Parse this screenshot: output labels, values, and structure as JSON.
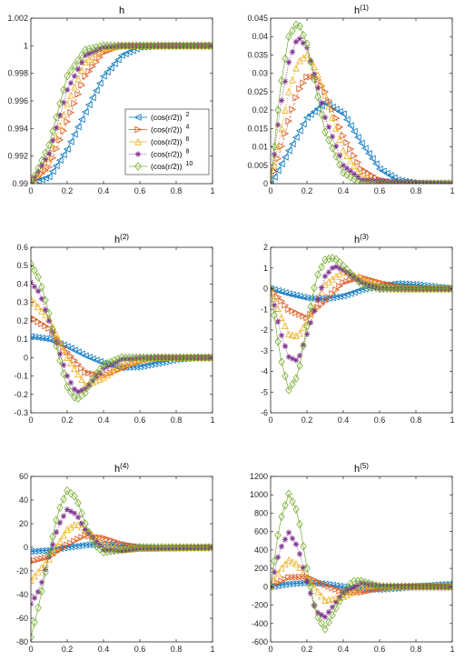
{
  "colors": [
    "#0072BD",
    "#D95319",
    "#EDB120",
    "#7E2F8E",
    "#77AC30"
  ],
  "legend": {
    "entries": [
      "(cos(r/2))",
      "(cos(r/2))",
      "(cos(r/2))",
      "(cos(r/2))",
      "(cos(r/2))"
    ],
    "powers": [
      "2",
      "4",
      "6",
      "8",
      "10"
    ],
    "markers": [
      "triangle-left",
      "triangle-right",
      "triangle-up",
      "asterisk",
      "diamond"
    ],
    "location": "lower-right of first panel"
  },
  "chart_data": [
    {
      "type": "line",
      "title": "h",
      "title_sup": "",
      "xlim": [
        0,
        1
      ],
      "ylim": [
        0.99,
        1.002
      ],
      "xticks": [
        "0",
        "0.2",
        "0.4",
        "0.6",
        "0.8",
        "1"
      ],
      "yticks": [
        "0.99",
        "0.992",
        "0.994",
        "0.996",
        "0.998",
        "1",
        "1.002"
      ],
      "series": [
        {
          "name": "(cos(r/2))^2",
          "x": [
            0,
            0.1,
            0.2,
            0.3,
            0.4,
            0.5,
            0.6,
            0.7,
            0.8,
            0.9,
            1
          ],
          "y": [
            0.99,
            0.9905,
            0.9925,
            0.9952,
            0.9978,
            0.9993,
            0.9999,
            1,
            1,
            1,
            1
          ]
        },
        {
          "name": "(cos(r/2))^4",
          "x": [
            0,
            0.1,
            0.2,
            0.3,
            0.4,
            0.5,
            0.6,
            0.7,
            0.8,
            0.9,
            1
          ],
          "y": [
            0.99,
            0.9912,
            0.9945,
            0.9978,
            0.9995,
            1,
            1,
            1,
            1,
            1,
            1
          ]
        },
        {
          "name": "(cos(r/2))^6",
          "x": [
            0,
            0.1,
            0.2,
            0.3,
            0.4,
            0.5,
            0.6,
            0.7,
            0.8,
            0.9,
            1
          ],
          "y": [
            0.99,
            0.9918,
            0.9958,
            0.9988,
            0.9998,
            1,
            1,
            1,
            1,
            1,
            1
          ]
        },
        {
          "name": "(cos(r/2))^8",
          "x": [
            0,
            0.1,
            0.2,
            0.3,
            0.4,
            0.5,
            0.6,
            0.7,
            0.8,
            0.9,
            1
          ],
          "y": [
            0.99,
            0.9922,
            0.9968,
            0.9993,
            0.9999,
            1,
            1,
            1,
            1,
            1,
            1
          ]
        },
        {
          "name": "(cos(r/2))^10",
          "x": [
            0,
            0.1,
            0.2,
            0.3,
            0.4,
            0.5,
            0.6,
            0.7,
            0.8,
            0.9,
            1
          ],
          "y": [
            0.99,
            0.9928,
            0.9978,
            0.9997,
            1,
            1,
            1,
            1,
            1,
            1,
            1
          ]
        }
      ]
    },
    {
      "type": "line",
      "title": "h",
      "title_sup": "(1)",
      "xlim": [
        0,
        1
      ],
      "ylim": [
        0,
        0.045
      ],
      "xticks": [
        "0",
        "0.2",
        "0.4",
        "0.6",
        "0.8",
        "1"
      ],
      "yticks": [
        "0",
        "0.005",
        "0.01",
        "0.015",
        "0.02",
        "0.025",
        "0.03",
        "0.035",
        "0.04",
        "0.045"
      ],
      "series": [
        {
          "name": "(cos(r/2))^2",
          "x": [
            0,
            0.1,
            0.2,
            0.3,
            0.4,
            0.5,
            0.6,
            0.7,
            0.8,
            0.9,
            1
          ],
          "y": [
            0,
            0.009,
            0.018,
            0.022,
            0.019,
            0.011,
            0.004,
            0.001,
            0,
            0,
            0
          ]
        },
        {
          "name": "(cos(r/2))^4",
          "x": [
            0,
            0.1,
            0.15,
            0.2,
            0.25,
            0.3,
            0.4,
            0.5,
            0.6,
            0.7,
            1
          ],
          "y": [
            0,
            0.017,
            0.025,
            0.029,
            0.029,
            0.025,
            0.013,
            0.004,
            0.001,
            0,
            0
          ]
        },
        {
          "name": "(cos(r/2))^6",
          "x": [
            0,
            0.1,
            0.15,
            0.2,
            0.25,
            0.3,
            0.4,
            0.5,
            0.6,
            1
          ],
          "y": [
            0,
            0.025,
            0.033,
            0.035,
            0.031,
            0.024,
            0.009,
            0.002,
            0,
            0
          ]
        },
        {
          "name": "(cos(r/2))^8",
          "x": [
            0,
            0.05,
            0.1,
            0.15,
            0.2,
            0.25,
            0.3,
            0.4,
            0.5,
            1
          ],
          "y": [
            0,
            0.02,
            0.033,
            0.04,
            0.037,
            0.028,
            0.018,
            0.005,
            0.001,
            0
          ]
        },
        {
          "name": "(cos(r/2))^10",
          "x": [
            0,
            0.05,
            0.1,
            0.15,
            0.2,
            0.25,
            0.3,
            0.4,
            0.5,
            1
          ],
          "y": [
            0,
            0.025,
            0.04,
            0.044,
            0.038,
            0.026,
            0.014,
            0.003,
            0,
            0
          ]
        }
      ]
    },
    {
      "type": "line",
      "title": "h",
      "title_sup": "(2)",
      "xlim": [
        0,
        1
      ],
      "ylim": [
        -0.3,
        0.6
      ],
      "xticks": [
        "0",
        "0.2",
        "0.4",
        "0.6",
        "0.8",
        "1"
      ],
      "yticks": [
        "-0.3",
        "-0.2",
        "-0.1",
        "0",
        "0.1",
        "0.2",
        "0.3",
        "0.4",
        "0.5",
        "0.6"
      ],
      "series": [
        {
          "name": "(cos(r/2))^2",
          "x": [
            0,
            0.1,
            0.2,
            0.3,
            0.4,
            0.5,
            0.6,
            0.7,
            0.8,
            0.9,
            1
          ],
          "y": [
            0.115,
            0.1,
            0.06,
            0.01,
            -0.03,
            -0.055,
            -0.05,
            -0.03,
            -0.01,
            0,
            0
          ]
        },
        {
          "name": "(cos(r/2))^4",
          "x": [
            0,
            0.1,
            0.2,
            0.3,
            0.4,
            0.5,
            0.6,
            0.7,
            0.8,
            1
          ],
          "y": [
            0.22,
            0.16,
            0.03,
            -0.08,
            -0.1,
            -0.06,
            -0.02,
            0,
            0,
            0
          ]
        },
        {
          "name": "(cos(r/2))^6",
          "x": [
            0,
            0.1,
            0.2,
            0.3,
            0.4,
            0.5,
            0.6,
            0.7,
            1
          ],
          "y": [
            0.32,
            0.21,
            0,
            -0.15,
            -0.11,
            -0.04,
            -0.01,
            0,
            0
          ]
        },
        {
          "name": "(cos(r/2))^8",
          "x": [
            0,
            0.05,
            0.1,
            0.15,
            0.2,
            0.25,
            0.3,
            0.4,
            0.5,
            0.6,
            1
          ],
          "y": [
            0.41,
            0.35,
            0.2,
            0.05,
            -0.1,
            -0.19,
            -0.17,
            -0.06,
            -0.01,
            0,
            0
          ]
        },
        {
          "name": "(cos(r/2))^10",
          "x": [
            0,
            0.05,
            0.1,
            0.15,
            0.2,
            0.25,
            0.3,
            0.35,
            0.4,
            0.5,
            0.6,
            1
          ],
          "y": [
            0.51,
            0.42,
            0.24,
            0.02,
            -0.16,
            -0.23,
            -0.19,
            -0.1,
            -0.04,
            0,
            0,
            0
          ]
        }
      ]
    },
    {
      "type": "line",
      "title": "h",
      "title_sup": "(3)",
      "xlim": [
        0,
        1
      ],
      "ylim": [
        -6,
        2
      ],
      "xticks": [
        "0",
        "0.2",
        "0.4",
        "0.6",
        "0.8",
        "1"
      ],
      "yticks": [
        "-6",
        "-5",
        "-4",
        "-3",
        "-2",
        "-1",
        "0",
        "1",
        "2"
      ],
      "series": [
        {
          "name": "(cos(r/2))^2",
          "x": [
            0,
            0.1,
            0.2,
            0.3,
            0.4,
            0.5,
            0.6,
            0.7,
            0.8,
            0.9,
            1
          ],
          "y": [
            0,
            -0.25,
            -0.45,
            -0.5,
            -0.35,
            -0.05,
            0.15,
            0.25,
            0.2,
            0.1,
            0
          ]
        },
        {
          "name": "(cos(r/2))^4",
          "x": [
            0,
            0.1,
            0.2,
            0.3,
            0.4,
            0.5,
            0.6,
            0.7,
            0.8,
            1
          ],
          "y": [
            0,
            -1,
            -1.4,
            -0.6,
            0.3,
            0.55,
            0.3,
            0.1,
            0,
            0
          ]
        },
        {
          "name": "(cos(r/2))^6",
          "x": [
            0,
            0.05,
            0.1,
            0.15,
            0.2,
            0.3,
            0.4,
            0.5,
            0.6,
            0.7,
            1
          ],
          "y": [
            0,
            -1.2,
            -2.2,
            -2.3,
            -1.6,
            0.2,
            0.85,
            0.5,
            0.15,
            0,
            0
          ]
        },
        {
          "name": "(cos(r/2))^8",
          "x": [
            0,
            0.05,
            0.1,
            0.15,
            0.2,
            0.3,
            0.35,
            0.4,
            0.5,
            0.6,
            1
          ],
          "y": [
            0,
            -2,
            -3.3,
            -3.5,
            -2.2,
            0.6,
            1.1,
            0.9,
            0.3,
            0,
            0
          ]
        },
        {
          "name": "(cos(r/2))^10",
          "x": [
            0,
            0.05,
            0.1,
            0.15,
            0.2,
            0.25,
            0.3,
            0.35,
            0.4,
            0.5,
            0.6,
            1
          ],
          "y": [
            0,
            -3.2,
            -4.9,
            -4.2,
            -1.8,
            0.5,
            1.4,
            1.5,
            1.1,
            0.2,
            0,
            0
          ]
        }
      ]
    },
    {
      "type": "line",
      "title": "h",
      "title_sup": "(4)",
      "xlim": [
        0,
        1
      ],
      "ylim": [
        -80,
        60
      ],
      "xticks": [
        "0",
        "0.2",
        "0.4",
        "0.6",
        "0.8",
        "1"
      ],
      "yticks": [
        "-80",
        "-60",
        "-40",
        "-20",
        "0",
        "20",
        "40",
        "60"
      ],
      "series": [
        {
          "name": "(cos(r/2))^2",
          "x": [
            0,
            0.1,
            0.2,
            0.3,
            0.4,
            0.5,
            0.6,
            0.7,
            0.8,
            1
          ],
          "y": [
            -3.5,
            -2.5,
            0,
            2,
            2.5,
            1.5,
            0,
            -0.5,
            -0.5,
            0
          ]
        },
        {
          "name": "(cos(r/2))^4",
          "x": [
            0,
            0.1,
            0.2,
            0.3,
            0.4,
            0.5,
            0.6,
            0.7,
            0.8,
            1
          ],
          "y": [
            -12,
            -8,
            2,
            10,
            8,
            3,
            0,
            -1,
            -0.5,
            0
          ]
        },
        {
          "name": "(cos(r/2))^6",
          "x": [
            0,
            0.1,
            0.2,
            0.25,
            0.3,
            0.4,
            0.5,
            0.6,
            1
          ],
          "y": [
            -28,
            -10,
            15,
            20,
            15,
            2,
            -2,
            -1,
            0
          ]
        },
        {
          "name": "(cos(r/2))^8",
          "x": [
            0,
            0.05,
            0.1,
            0.15,
            0.2,
            0.25,
            0.3,
            0.4,
            0.5,
            0.6,
            1
          ],
          "y": [
            -48,
            -35,
            -8,
            18,
            32,
            28,
            15,
            -2,
            -3,
            -1,
            0
          ]
        },
        {
          "name": "(cos(r/2))^10",
          "x": [
            0,
            0.05,
            0.1,
            0.15,
            0.2,
            0.25,
            0.3,
            0.35,
            0.4,
            0.5,
            0.6,
            1
          ],
          "y": [
            -76,
            -45,
            -5,
            30,
            48,
            42,
            20,
            2,
            -4,
            -2,
            0,
            0
          ]
        }
      ]
    },
    {
      "type": "line",
      "title": "h",
      "title_sup": "(5)",
      "xlim": [
        0,
        1
      ],
      "ylim": [
        -600,
        1200
      ],
      "xticks": [
        "0",
        "0.2",
        "0.4",
        "0.6",
        "0.8",
        "1"
      ],
      "yticks": [
        "-600",
        "-400",
        "-200",
        "0",
        "200",
        "400",
        "600",
        "800",
        "1000",
        "1200"
      ],
      "series": [
        {
          "name": "(cos(r/2))^2",
          "x": [
            0,
            0.1,
            0.2,
            0.3,
            0.4,
            0.5,
            0.6,
            0.7,
            0.8,
            0.9,
            1
          ],
          "y": [
            0,
            30,
            45,
            30,
            0,
            -25,
            -30,
            -15,
            5,
            20,
            30
          ]
        },
        {
          "name": "(cos(r/2))^4",
          "x": [
            0,
            0.1,
            0.2,
            0.3,
            0.4,
            0.5,
            0.6,
            0.7,
            0.8,
            1
          ],
          "y": [
            0,
            100,
            110,
            20,
            -60,
            -60,
            -20,
            0,
            5,
            0
          ]
        },
        {
          "name": "(cos(r/2))^6",
          "x": [
            0,
            0.05,
            0.1,
            0.15,
            0.2,
            0.3,
            0.4,
            0.5,
            0.6,
            0.7,
            1
          ],
          "y": [
            0,
            180,
            290,
            240,
            90,
            -150,
            -110,
            0,
            20,
            0,
            0
          ]
        },
        {
          "name": "(cos(r/2))^8",
          "x": [
            0,
            0.05,
            0.1,
            0.15,
            0.2,
            0.25,
            0.3,
            0.4,
            0.5,
            0.6,
            1
          ],
          "y": [
            0,
            400,
            590,
            430,
            60,
            -270,
            -330,
            -60,
            40,
            10,
            0
          ]
        },
        {
          "name": "(cos(r/2))^10",
          "x": [
            0,
            0.05,
            0.1,
            0.15,
            0.2,
            0.25,
            0.3,
            0.4,
            0.45,
            0.5,
            0.6,
            1
          ],
          "y": [
            0,
            700,
            1010,
            800,
            200,
            -300,
            -460,
            -80,
            60,
            60,
            0,
            0
          ]
        }
      ]
    }
  ]
}
